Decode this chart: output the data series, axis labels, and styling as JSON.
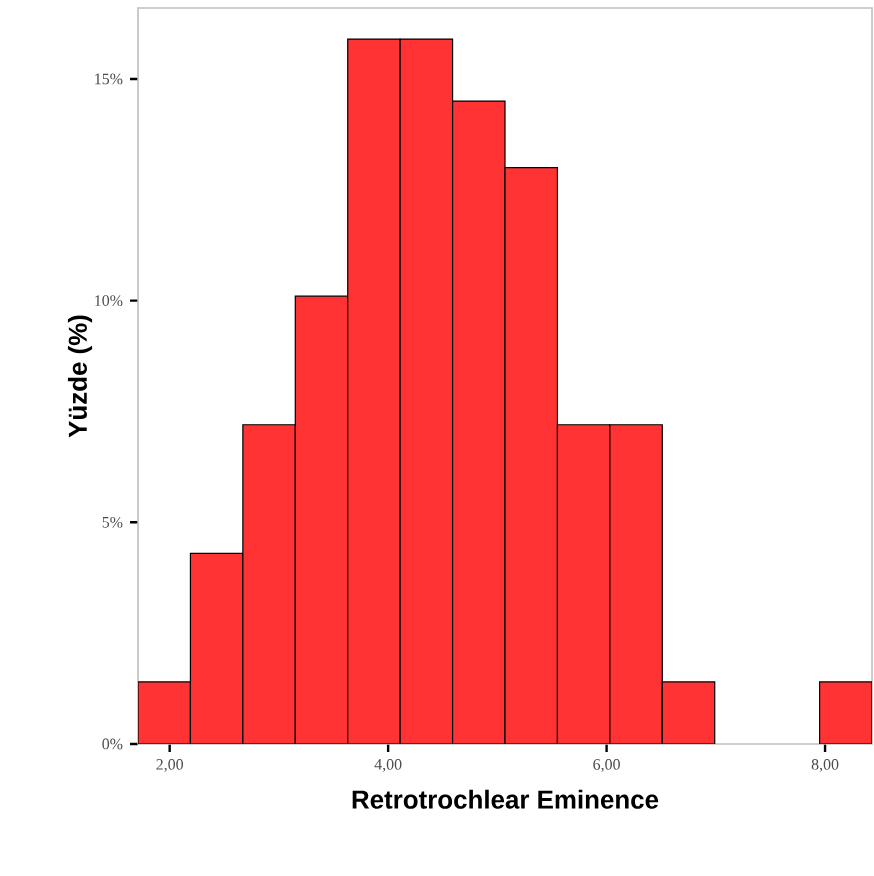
{
  "chart_data": {
    "type": "histogram",
    "xlabel": "Retrotrochlear Eminence",
    "ylabel": "Yüzde (%)",
    "bins": [
      1.71,
      2.19,
      2.67,
      3.15,
      3.63,
      4.11,
      4.59,
      5.07,
      5.55,
      6.03,
      6.51,
      6.99,
      7.47,
      7.95,
      8.43
    ],
    "values": [
      1.4,
      4.3,
      7.2,
      10.1,
      15.9,
      15.9,
      14.5,
      13.0,
      7.2,
      7.2,
      1.4,
      0,
      0,
      1.4
    ],
    "color": "#ff3333",
    "xlim": [
      1.71,
      8.43
    ],
    "ylim": [
      0,
      16.6
    ],
    "xticks": [
      {
        "value": 2,
        "label": "2,00"
      },
      {
        "value": 4,
        "label": "4,00"
      },
      {
        "value": 6,
        "label": "6,00"
      },
      {
        "value": 8,
        "label": "8,00"
      }
    ],
    "yticks": [
      {
        "value": 0,
        "label": "0%"
      },
      {
        "value": 5,
        "label": "5%"
      },
      {
        "value": 10,
        "label": "10%"
      },
      {
        "value": 15,
        "label": "15%"
      }
    ]
  }
}
